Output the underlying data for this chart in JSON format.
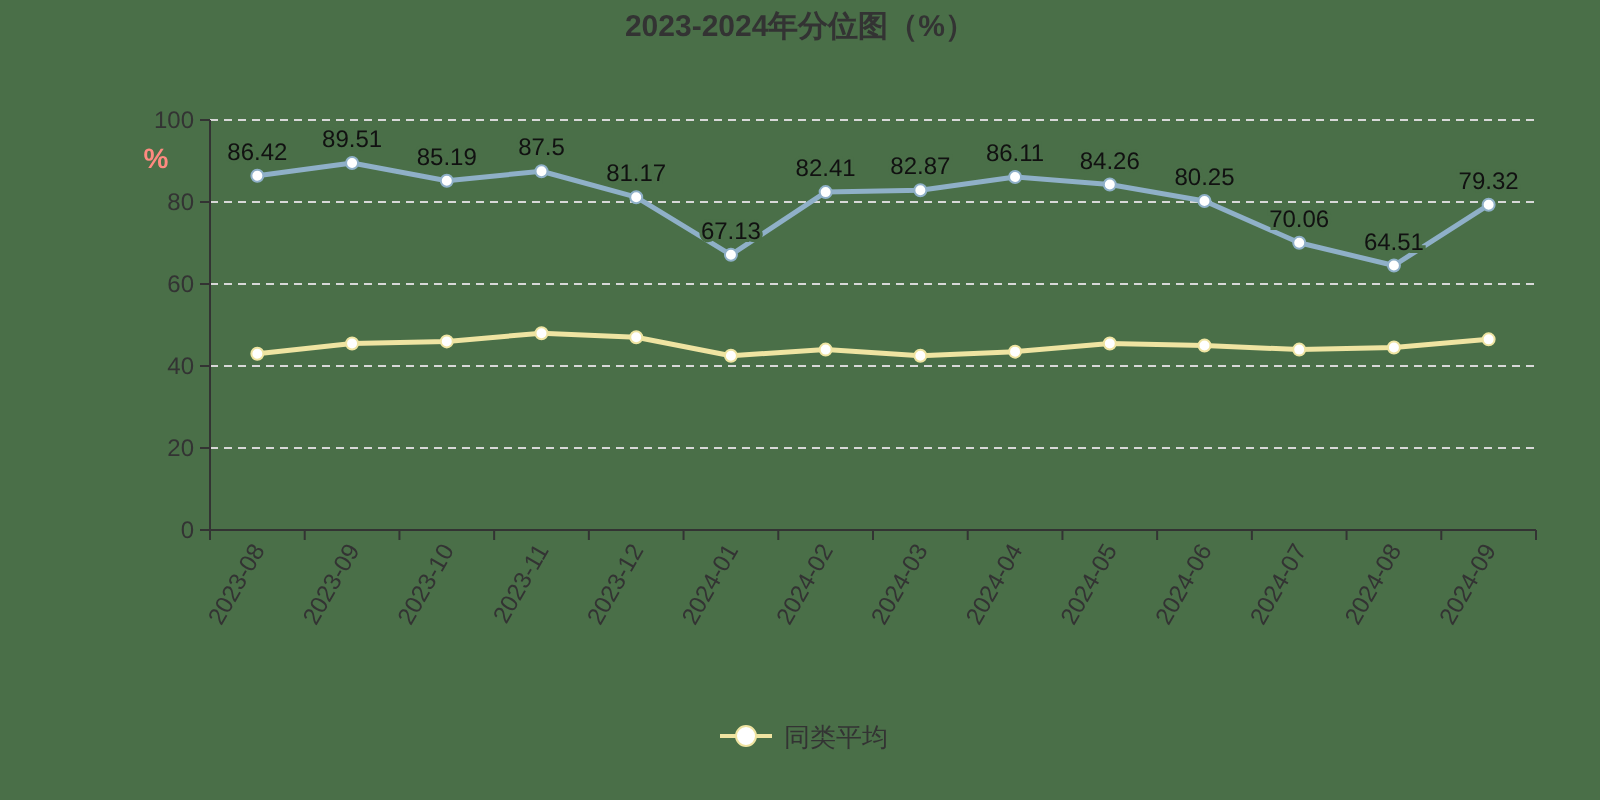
{
  "chart_data": {
    "type": "line",
    "title": "2023-2024年分位图（%）",
    "ylabel": "%",
    "categories": [
      "2023-08",
      "2023-09",
      "2023-10",
      "2023-11",
      "2023-12",
      "2024-01",
      "2024-02",
      "2024-03",
      "2024-04",
      "2024-05",
      "2024-06",
      "2024-07",
      "2024-08",
      "2024-09"
    ],
    "series": [
      {
        "color": "#8fb0c8",
        "values": [
          86.42,
          89.51,
          85.19,
          87.5,
          81.17,
          67.13,
          82.41,
          82.87,
          86.11,
          84.26,
          80.25,
          70.06,
          64.51,
          79.32
        ],
        "data_labels": true
      },
      {
        "name": "同类平均",
        "color": "#efe4a2",
        "values": [
          43,
          45.5,
          46,
          48,
          47,
          42.5,
          44,
          42.5,
          43.5,
          45.5,
          45,
          44,
          44.5,
          46.5
        ]
      }
    ],
    "ylim": [
      0,
      100
    ],
    "yticks": [
      0,
      20,
      40,
      60,
      80,
      100
    ],
    "grid": "y",
    "legend": "bottom",
    "marker": "circle",
    "line_style": "solid"
  }
}
